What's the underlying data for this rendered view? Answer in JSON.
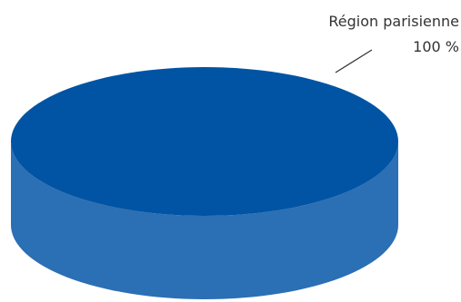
{
  "chart_data": {
    "type": "pie",
    "style": "3d",
    "title": "",
    "slices": [
      {
        "label": "Région parisienne",
        "value": 100,
        "value_label": "100 %",
        "color": "#0054a3",
        "side_color": "#2b6fb5"
      }
    ],
    "legend": "none",
    "data_labels": "outside-top-right"
  }
}
